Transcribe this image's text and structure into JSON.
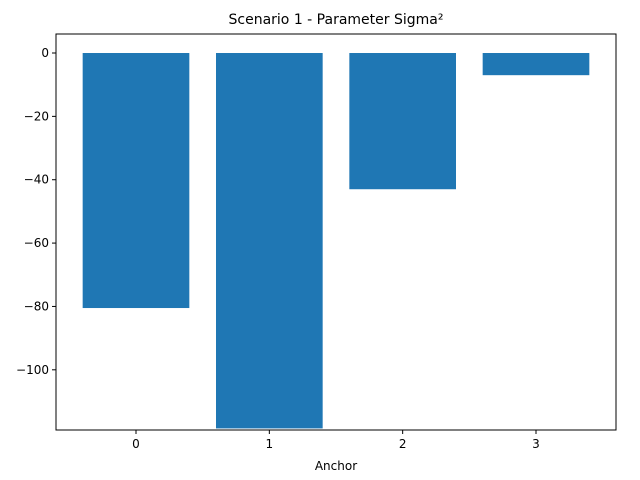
{
  "chart_data": {
    "type": "bar",
    "title": "Scenario 1 - Parameter Sigma²",
    "xlabel": "Anchor",
    "ylabel": "",
    "categories": [
      "0",
      "1",
      "2",
      "3"
    ],
    "values": [
      -80.5,
      -118.5,
      -43.0,
      -7.0
    ],
    "ylim": [
      -119,
      6
    ],
    "yticks": [
      0,
      -20,
      -40,
      -60,
      -80,
      -100
    ],
    "ytick_labels": [
      "0",
      "−20",
      "−40",
      "−60",
      "−80",
      "−100"
    ],
    "bar_color": "#1f77b4",
    "grid": false,
    "legend": "none"
  }
}
